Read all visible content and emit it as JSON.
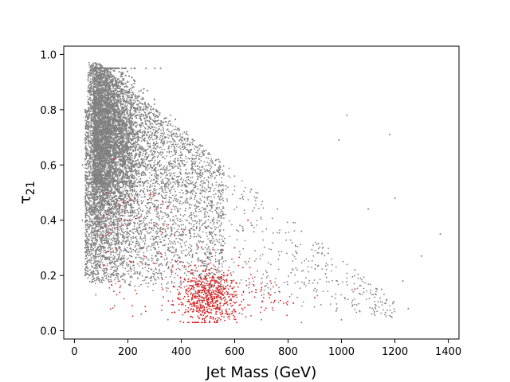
{
  "chart_data": {
    "type": "scatter",
    "title": "",
    "xlabel": "Jet Mass (GeV)",
    "ylabel_symbol": "τ",
    "ylabel_subscript": "21",
    "xlim": [
      -40,
      1440
    ],
    "ylim": [
      -0.03,
      1.03
    ],
    "xticks": [
      0,
      200,
      400,
      600,
      800,
      1000,
      1200,
      1400
    ],
    "yticks": [
      0.0,
      0.2,
      0.4,
      0.6,
      0.8,
      1.0
    ],
    "xtick_labels": [
      "0",
      "200",
      "400",
      "600",
      "800",
      "1000",
      "1200",
      "1400"
    ],
    "ytick_labels": [
      "0.0",
      "0.2",
      "0.4",
      "0.6",
      "0.8",
      "1.0"
    ],
    "grid": false,
    "legend": "none",
    "series": [
      {
        "color": "#808080",
        "marker": "small dot",
        "description_points": [
          {
            "x": 60,
            "y": 0.93
          },
          {
            "x": 100,
            "y": 0.96
          },
          {
            "x": 150,
            "y": 0.94
          },
          {
            "x": 200,
            "y": 0.9
          },
          {
            "x": 250,
            "y": 0.87
          },
          {
            "x": 300,
            "y": 0.82
          },
          {
            "x": 360,
            "y": 0.78
          },
          {
            "x": 420,
            "y": 0.72
          },
          {
            "x": 480,
            "y": 0.67
          },
          {
            "x": 540,
            "y": 0.62
          },
          {
            "x": 600,
            "y": 0.56
          },
          {
            "x": 680,
            "y": 0.5
          },
          {
            "x": 760,
            "y": 0.44
          },
          {
            "x": 850,
            "y": 0.36
          },
          {
            "x": 950,
            "y": 0.28
          },
          {
            "x": 1050,
            "y": 0.22
          },
          {
            "x": 1150,
            "y": 0.15
          },
          {
            "x": 1250,
            "y": 0.08
          },
          {
            "x": 1000,
            "y": 0.04
          },
          {
            "x": 850,
            "y": 0.03
          },
          {
            "x": 700,
            "y": 0.04
          },
          {
            "x": 560,
            "y": 0.05
          },
          {
            "x": 450,
            "y": 0.03
          },
          {
            "x": 350,
            "y": 0.04
          },
          {
            "x": 250,
            "y": 0.06
          },
          {
            "x": 150,
            "y": 0.09
          },
          {
            "x": 80,
            "y": 0.13
          },
          {
            "x": 40,
            "y": 0.2
          },
          {
            "x": 30,
            "y": 0.4
          },
          {
            "x": 30,
            "y": 0.6
          },
          {
            "x": 40,
            "y": 0.8
          },
          {
            "x": 1020,
            "y": 0.78
          },
          {
            "x": 1180,
            "y": 0.71
          },
          {
            "x": 1370,
            "y": 0.35
          },
          {
            "x": 1230,
            "y": 0.18
          },
          {
            "x": 1200,
            "y": 0.48
          },
          {
            "x": 1100,
            "y": 0.44
          },
          {
            "x": 990,
            "y": 0.69
          },
          {
            "x": 1300,
            "y": 0.27
          }
        ],
        "density_center": {
          "x": 120,
          "y": 0.7
        }
      },
      {
        "color": "#d62728",
        "marker": "small dot",
        "description_points": [
          {
            "x": 480,
            "y": 0.12
          },
          {
            "x": 500,
            "y": 0.1
          },
          {
            "x": 520,
            "y": 0.14
          },
          {
            "x": 460,
            "y": 0.16
          },
          {
            "x": 540,
            "y": 0.08
          },
          {
            "x": 440,
            "y": 0.22
          },
          {
            "x": 560,
            "y": 0.2
          },
          {
            "x": 600,
            "y": 0.3
          },
          {
            "x": 380,
            "y": 0.25
          },
          {
            "x": 150,
            "y": 0.62
          },
          {
            "x": 120,
            "y": 0.5
          },
          {
            "x": 200,
            "y": 0.4
          },
          {
            "x": 250,
            "y": 0.3
          },
          {
            "x": 650,
            "y": 0.4
          },
          {
            "x": 700,
            "y": 0.15
          },
          {
            "x": 820,
            "y": 0.1
          },
          {
            "x": 900,
            "y": 0.12
          },
          {
            "x": 1050,
            "y": 0.15
          },
          {
            "x": 330,
            "y": 0.15
          },
          {
            "x": 600,
            "y": 0.05
          }
        ],
        "density_center": {
          "x": 500,
          "y": 0.12
        }
      }
    ]
  }
}
